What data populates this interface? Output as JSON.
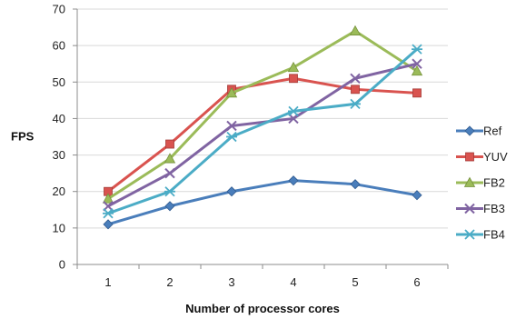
{
  "chart_data": {
    "type": "line",
    "title": "",
    "xlabel": "Number of processor cores",
    "ylabel": "FPS",
    "x": [
      1,
      2,
      3,
      4,
      5,
      6
    ],
    "ylim": [
      0,
      70
    ],
    "yticks": [
      0,
      10,
      20,
      30,
      40,
      50,
      60,
      70
    ],
    "grid": "horizontal",
    "legend": "right",
    "series": [
      {
        "name": "Ref",
        "marker": "diamond",
        "color": "#4a7ebb",
        "values": [
          11,
          16,
          20,
          23,
          22,
          19
        ]
      },
      {
        "name": "YUV",
        "marker": "square",
        "color": "#d9534f",
        "values": [
          20,
          33,
          48,
          51,
          48,
          47
        ]
      },
      {
        "name": "FB2",
        "marker": "triangle",
        "color": "#9bbb59",
        "values": [
          18,
          29,
          47,
          54,
          64,
          53
        ]
      },
      {
        "name": "FB3",
        "marker": "x",
        "color": "#8064a2",
        "values": [
          16,
          25,
          38,
          40,
          51,
          55
        ]
      },
      {
        "name": "FB4",
        "marker": "asterisk",
        "color": "#4bacc6",
        "values": [
          14,
          20,
          35,
          42,
          44,
          59
        ]
      }
    ]
  }
}
